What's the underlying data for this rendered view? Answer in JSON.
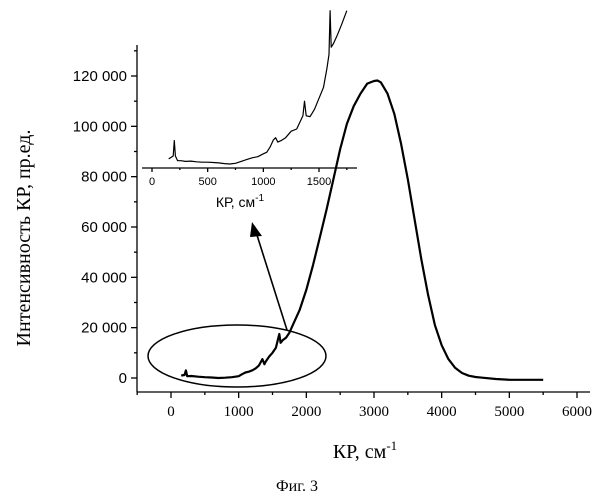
{
  "chart_data": [
    {
      "type": "line",
      "role": "main",
      "title": "",
      "xlabel": "КР, см",
      "xlabel_superscript": "-1",
      "ylabel": "Интенсивность КР, пр.ед.",
      "xlim": [
        -500,
        6000
      ],
      "ylim": [
        -5000,
        130000
      ],
      "x_ticks": [
        0,
        1000,
        2000,
        3000,
        4000,
        5000,
        6000
      ],
      "x_tick_labels": [
        "0",
        "1000",
        "2000",
        "3000",
        "4000",
        "5000",
        "6000"
      ],
      "y_ticks": [
        0,
        20000,
        40000,
        60000,
        80000,
        100000,
        120000
      ],
      "y_tick_labels": [
        "0",
        "20 000",
        "40 000",
        "60 000",
        "80 000",
        "100 000",
        "120 000"
      ],
      "grid": false,
      "series": [
        {
          "x": [
            150,
            200,
            220,
            240,
            300,
            400,
            500,
            600,
            700,
            800,
            900,
            1000,
            1050,
            1100,
            1150,
            1200,
            1250,
            1300,
            1350,
            1380,
            1400,
            1450,
            1500,
            1550,
            1600,
            1620,
            1650,
            1700,
            1750,
            1800,
            1900,
            2000,
            2100,
            2200,
            2300,
            2400,
            2500,
            2600,
            2700,
            2800,
            2900,
            3000,
            3050,
            3100,
            3200,
            3300,
            3400,
            3500,
            3600,
            3700,
            3800,
            3900,
            4000,
            4100,
            4200,
            4300,
            4400,
            4500,
            4600,
            4800,
            5000,
            5200,
            5500
          ],
          "y": [
            1000,
            1200,
            3000,
            700,
            800,
            500,
            300,
            200,
            0,
            100,
            300,
            700,
            1500,
            2200,
            2500,
            3000,
            3800,
            5000,
            7500,
            5500,
            6500,
            8500,
            10000,
            12000,
            17500,
            14000,
            15000,
            16000,
            18000,
            21000,
            27000,
            35000,
            45000,
            56000,
            67000,
            79000,
            91000,
            101000,
            108000,
            113000,
            117000,
            118000,
            118200,
            117500,
            113000,
            105000,
            93000,
            79000,
            63000,
            47000,
            33000,
            21000,
            13000,
            7500,
            4000,
            2000,
            900,
            400,
            100,
            -400,
            -700,
            -700,
            -700
          ]
        }
      ],
      "annotations": [
        {
          "type": "ellipse",
          "label": ""
        },
        {
          "type": "arrow",
          "label": ""
        }
      ]
    },
    {
      "type": "line",
      "role": "inset",
      "title": "",
      "xlabel": "КР, см",
      "xlabel_superscript": "-1",
      "ylabel": "",
      "xlim": [
        -100,
        1900
      ],
      "x_ticks": [
        0,
        500,
        1000,
        1500
      ],
      "x_tick_labels": [
        "0",
        "500",
        "1000",
        "1500"
      ],
      "y_ticks": [],
      "grid": false,
      "series": [
        {
          "x": [
            150,
            190,
            200,
            210,
            230,
            260,
            300,
            350,
            400,
            450,
            500,
            550,
            600,
            650,
            700,
            750,
            800,
            850,
            900,
            950,
            1000,
            1030,
            1060,
            1090,
            1110,
            1130,
            1160,
            1200,
            1250,
            1300,
            1330,
            1355,
            1370,
            1385,
            1420,
            1460,
            1500,
            1540,
            1570,
            1590,
            1600,
            1610,
            1630,
            1660,
            1700,
            1750
          ],
          "y": [
            0.7,
            1.1,
            3.2,
            1.1,
            0.45,
            0.45,
            0.35,
            0.4,
            0.3,
            0.25,
            0.25,
            0.2,
            0.15,
            0.05,
            0.0,
            0.1,
            0.35,
            0.6,
            0.85,
            1.0,
            1.4,
            1.6,
            2.3,
            3.3,
            3.6,
            3.0,
            3.2,
            3.6,
            4.5,
            4.8,
            5.8,
            6.6,
            8.6,
            6.6,
            6.5,
            7.5,
            9.0,
            10.5,
            13.0,
            15.0,
            21.0,
            16.0,
            16.5,
            17.5,
            19.0,
            21.0
          ]
        }
      ]
    }
  ],
  "caption": "Фиг. 3"
}
